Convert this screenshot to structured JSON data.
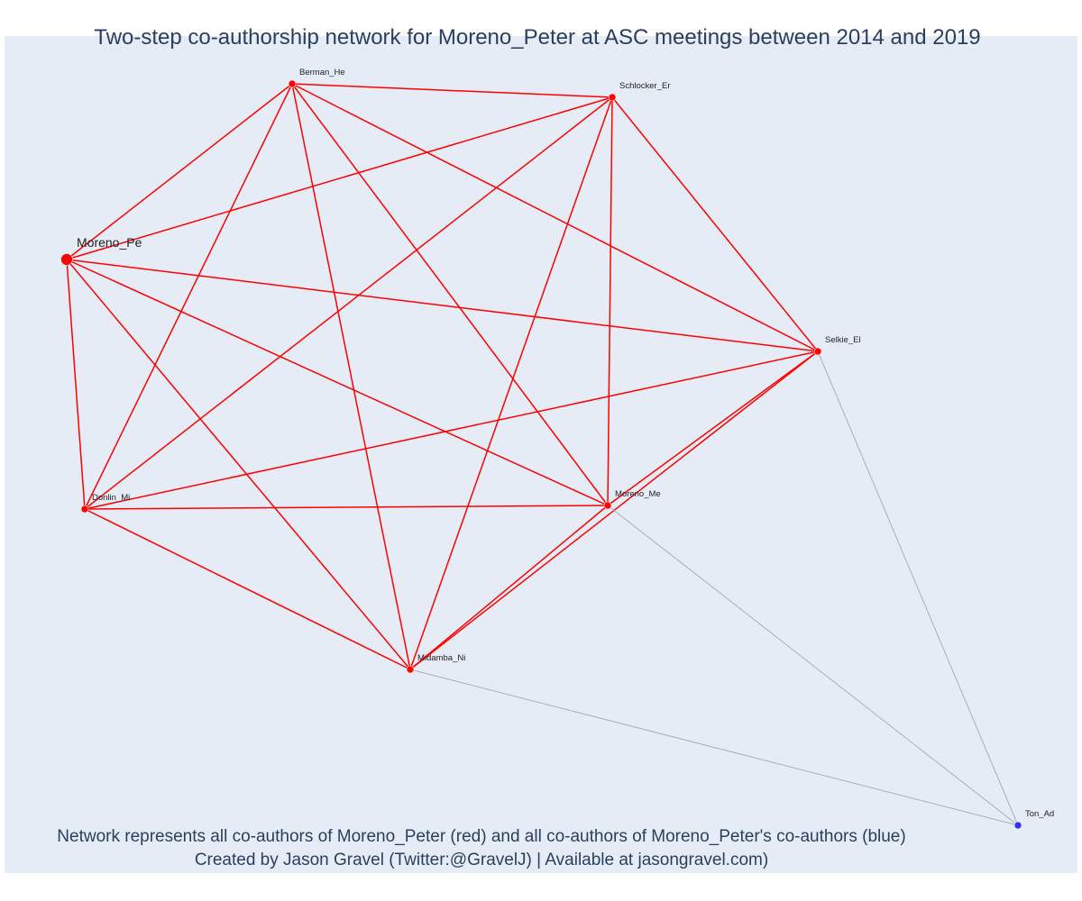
{
  "title": "Two-step co-authorship network for Moreno_Peter at ASC meetings between 2014 and 2019",
  "caption": {
    "line1": "Network represents all co-authors of Moreno_Peter (red) and all co-authors of Moreno_Peter's co-authors (blue)",
    "line2": "Created by Jason Gravel (Twitter:@GravelJ) | Available at jasongravel.com)"
  },
  "colors": {
    "background": "#e5ecf6",
    "text": "#2a3f5f",
    "first_step": "#ff0000",
    "second_step": "#3333ee",
    "second_step_edge": "#a9aec0"
  },
  "nodes": [
    {
      "id": "moreno_pe",
      "label": "Moreno_Pe",
      "group": "focal"
    },
    {
      "id": "berman_he",
      "label": "Berman_He",
      "group": "first-step"
    },
    {
      "id": "schlocker_er",
      "label": "Schlocker_Er",
      "group": "first-step"
    },
    {
      "id": "selkie_el",
      "label": "Selkie_El",
      "group": "first-step"
    },
    {
      "id": "donlin_mi",
      "label": "Donlin_Mi",
      "group": "first-step"
    },
    {
      "id": "moreno_me",
      "label": "Moreno_Me",
      "group": "first-step"
    },
    {
      "id": "midamba_ni",
      "label": "Midamba_Ni",
      "group": "first-step"
    },
    {
      "id": "ton_ad",
      "label": "Ton_Ad",
      "group": "second-step"
    }
  ],
  "edges": [
    {
      "source": "moreno_pe",
      "target": "berman_he",
      "group": "first-step"
    },
    {
      "source": "moreno_pe",
      "target": "schlocker_er",
      "group": "first-step"
    },
    {
      "source": "moreno_pe",
      "target": "selkie_el",
      "group": "first-step"
    },
    {
      "source": "moreno_pe",
      "target": "donlin_mi",
      "group": "first-step"
    },
    {
      "source": "moreno_pe",
      "target": "moreno_me",
      "group": "first-step"
    },
    {
      "source": "moreno_pe",
      "target": "midamba_ni",
      "group": "first-step"
    },
    {
      "source": "berman_he",
      "target": "schlocker_er",
      "group": "first-step"
    },
    {
      "source": "berman_he",
      "target": "selkie_el",
      "group": "first-step"
    },
    {
      "source": "berman_he",
      "target": "donlin_mi",
      "group": "first-step"
    },
    {
      "source": "berman_he",
      "target": "moreno_me",
      "group": "first-step"
    },
    {
      "source": "berman_he",
      "target": "midamba_ni",
      "group": "first-step"
    },
    {
      "source": "schlocker_er",
      "target": "selkie_el",
      "group": "first-step"
    },
    {
      "source": "schlocker_er",
      "target": "donlin_mi",
      "group": "first-step"
    },
    {
      "source": "schlocker_er",
      "target": "moreno_me",
      "group": "first-step"
    },
    {
      "source": "schlocker_er",
      "target": "midamba_ni",
      "group": "first-step"
    },
    {
      "source": "selkie_el",
      "target": "donlin_mi",
      "group": "first-step"
    },
    {
      "source": "selkie_el",
      "target": "moreno_me",
      "group": "first-step"
    },
    {
      "source": "selkie_el",
      "target": "midamba_ni",
      "group": "first-step"
    },
    {
      "source": "donlin_mi",
      "target": "moreno_me",
      "group": "first-step"
    },
    {
      "source": "donlin_mi",
      "target": "midamba_ni",
      "group": "first-step"
    },
    {
      "source": "moreno_me",
      "target": "midamba_ni",
      "group": "first-step"
    },
    {
      "source": "selkie_el",
      "target": "ton_ad",
      "group": "second-step"
    },
    {
      "source": "moreno_me",
      "target": "ton_ad",
      "group": "second-step"
    },
    {
      "source": "midamba_ni",
      "target": "ton_ad",
      "group": "second-step"
    }
  ]
}
